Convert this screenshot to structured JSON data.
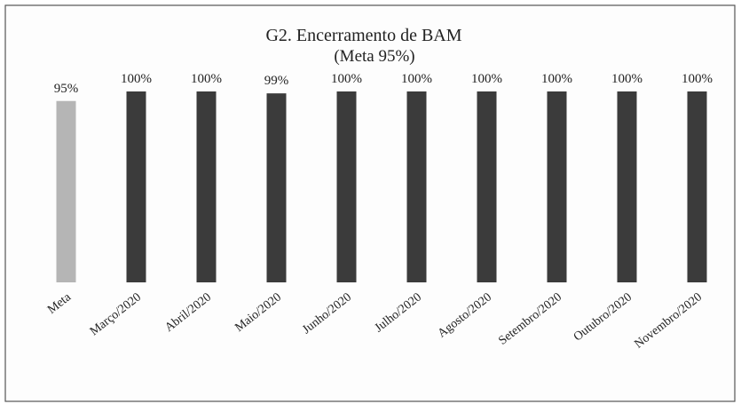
{
  "chart_data": {
    "type": "bar",
    "title": "G2. Encerramento de BAM",
    "subtitle": "(Meta 95%)",
    "categories": [
      "Meta",
      "Março/2020",
      "Abril/2020",
      "Maio/2020",
      "Junho/2020",
      "Julho/2020",
      "Agosto/2020",
      "Setembro/2020",
      "Outubro/2020",
      "Novembro/2020"
    ],
    "values": [
      95,
      100,
      100,
      99,
      100,
      100,
      100,
      100,
      100,
      100
    ],
    "value_labels": [
      "95%",
      "100%",
      "100%",
      "99%",
      "100%",
      "100%",
      "100%",
      "100%",
      "100%",
      "100%"
    ],
    "colors": [
      "#b5b5b5",
      "#3b3b3b",
      "#3b3b3b",
      "#3b3b3b",
      "#3b3b3b",
      "#3b3b3b",
      "#3b3b3b",
      "#3b3b3b",
      "#3b3b3b",
      "#3b3b3b"
    ]
  }
}
